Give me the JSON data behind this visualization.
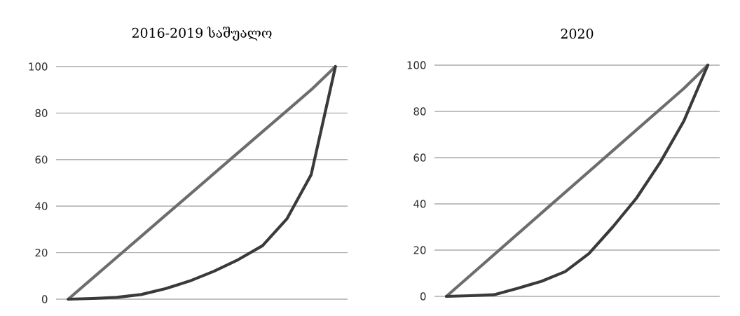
{
  "chart_data": [
    {
      "type": "line",
      "title": "2016-2019 საშუალო",
      "categories": [
        null,
        null,
        null,
        null,
        null,
        null,
        null,
        null,
        null,
        null,
        null,
        null
      ],
      "tick_labels": "y",
      "ylim": [
        0,
        100
      ],
      "yticks": [
        0,
        20,
        40,
        60,
        80,
        100
      ],
      "grid": "y",
      "marker": "none",
      "line_style": "solid",
      "series": [
        {
          "color": "#6d6d6d",
          "values": [
            0,
            9,
            18,
            27,
            36,
            45,
            54,
            63,
            72,
            81,
            90,
            100
          ]
        },
        {
          "color": "#3a3a3a",
          "values": [
            0,
            0.3,
            0.8,
            2,
            4.5,
            7.8,
            12,
            17,
            23,
            34.5,
            53.5,
            100
          ]
        }
      ]
    },
    {
      "type": "line",
      "title": "2020",
      "categories": [
        null,
        null,
        null,
        null,
        null,
        null,
        null,
        null,
        null,
        null,
        null,
        null
      ],
      "tick_labels": "y",
      "ylim": [
        0,
        100
      ],
      "yticks": [
        0,
        20,
        40,
        60,
        80,
        100
      ],
      "grid": "y",
      "marker": "none",
      "line_style": "solid",
      "series": [
        {
          "color": "#6d6d6d",
          "values": [
            0,
            9,
            18,
            27,
            36,
            45,
            54,
            63,
            72,
            81,
            90,
            100
          ]
        },
        {
          "color": "#3a3a3a",
          "values": [
            0,
            0.3,
            0.7,
            3.5,
            6.5,
            10.7,
            18.5,
            30,
            42.5,
            58,
            76,
            100
          ]
        }
      ]
    }
  ]
}
